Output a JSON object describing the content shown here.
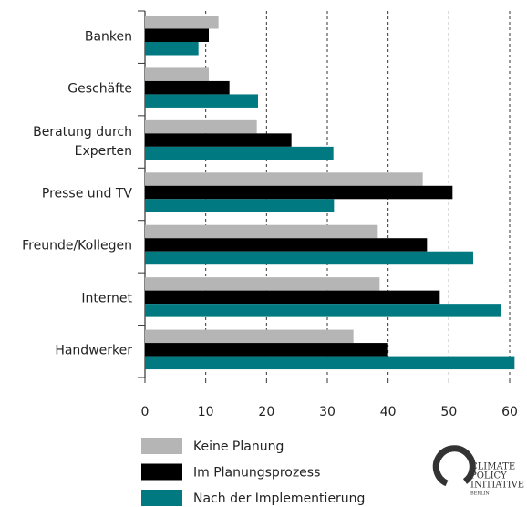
{
  "chart_data": {
    "type": "hbar",
    "categories": [
      "Banken",
      "Geschäfte",
      "Beratung durch\nExperten",
      "Presse und TV",
      "Freunde/Kollegen",
      "Internet",
      "Handwerker"
    ],
    "series": [
      {
        "name": "Keine Planung",
        "color": "#b5b5b5",
        "values": [
          12.1,
          10.5,
          18.4,
          45.7,
          38.3,
          38.6,
          34.3
        ]
      },
      {
        "name": "Im Planungsprozess",
        "color": "#000000",
        "values": [
          10.5,
          13.9,
          24.1,
          50.6,
          46.4,
          48.5,
          40.0
        ]
      },
      {
        "name": "Nach der Implementierung",
        "color": "#007a80",
        "values": [
          8.8,
          18.6,
          31.0,
          31.1,
          54.0,
          58.5,
          60.8
        ]
      }
    ],
    "xlim": [
      0,
      60
    ],
    "xticks": [
      0,
      10,
      20,
      30,
      40,
      50,
      60
    ],
    "grid": true,
    "logo": {
      "lines": [
        "CLIMATE",
        "POLICY",
        "INITIATIVE"
      ],
      "sub": "BERLIN"
    }
  }
}
